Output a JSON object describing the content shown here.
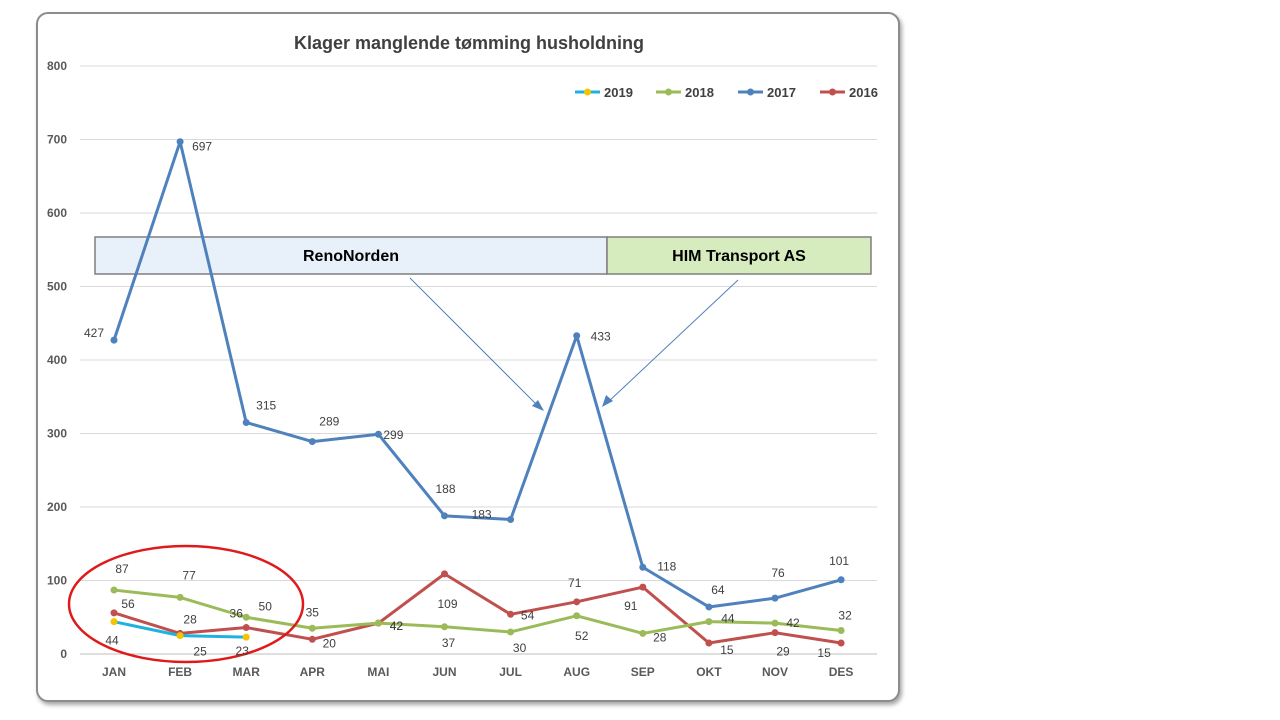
{
  "chart_data": {
    "type": "line",
    "title": "Klager manglende tømming husholdning",
    "xlabel": "",
    "ylabel": "",
    "ylim": [
      0,
      800
    ],
    "yticks": [
      0,
      100,
      200,
      300,
      400,
      500,
      600,
      700,
      800
    ],
    "categories": [
      "JAN",
      "FEB",
      "MAR",
      "APR",
      "MAI",
      "JUN",
      "JUL",
      "AUG",
      "SEP",
      "OKT",
      "NOV",
      "DES"
    ],
    "grid": true,
    "legend_position": "top-right",
    "series": [
      {
        "name": "2019",
        "color": "#1fb1e0",
        "marker_color": "#f5c400",
        "values": [
          44,
          25,
          23,
          null,
          null,
          null,
          null,
          null,
          null,
          null,
          null,
          null
        ]
      },
      {
        "name": "2018",
        "color": "#9bbb59",
        "marker_color": "#9bbb59",
        "values": [
          87,
          77,
          50,
          35,
          42,
          37,
          30,
          52,
          28,
          44,
          42,
          32
        ]
      },
      {
        "name": "2017",
        "color": "#4f81bd",
        "marker_color": "#4f81bd",
        "values": [
          427,
          697,
          315,
          289,
          299,
          188,
          183,
          433,
          118,
          64,
          76,
          101
        ]
      },
      {
        "name": "2016",
        "color": "#c0504d",
        "marker_color": "#c0504d",
        "values": [
          56,
          28,
          36,
          20,
          42,
          109,
          54,
          71,
          91,
          15,
          29,
          15
        ]
      }
    ],
    "annotations": [
      {
        "text": "RenoNorden",
        "fill": "#e8f0f9"
      },
      {
        "text": "HIM Transport AS",
        "fill": "#d7ecbe"
      }
    ],
    "highlight": {
      "shape": "ellipse",
      "color": "#e0191b",
      "around": "JAN–MAR"
    }
  }
}
